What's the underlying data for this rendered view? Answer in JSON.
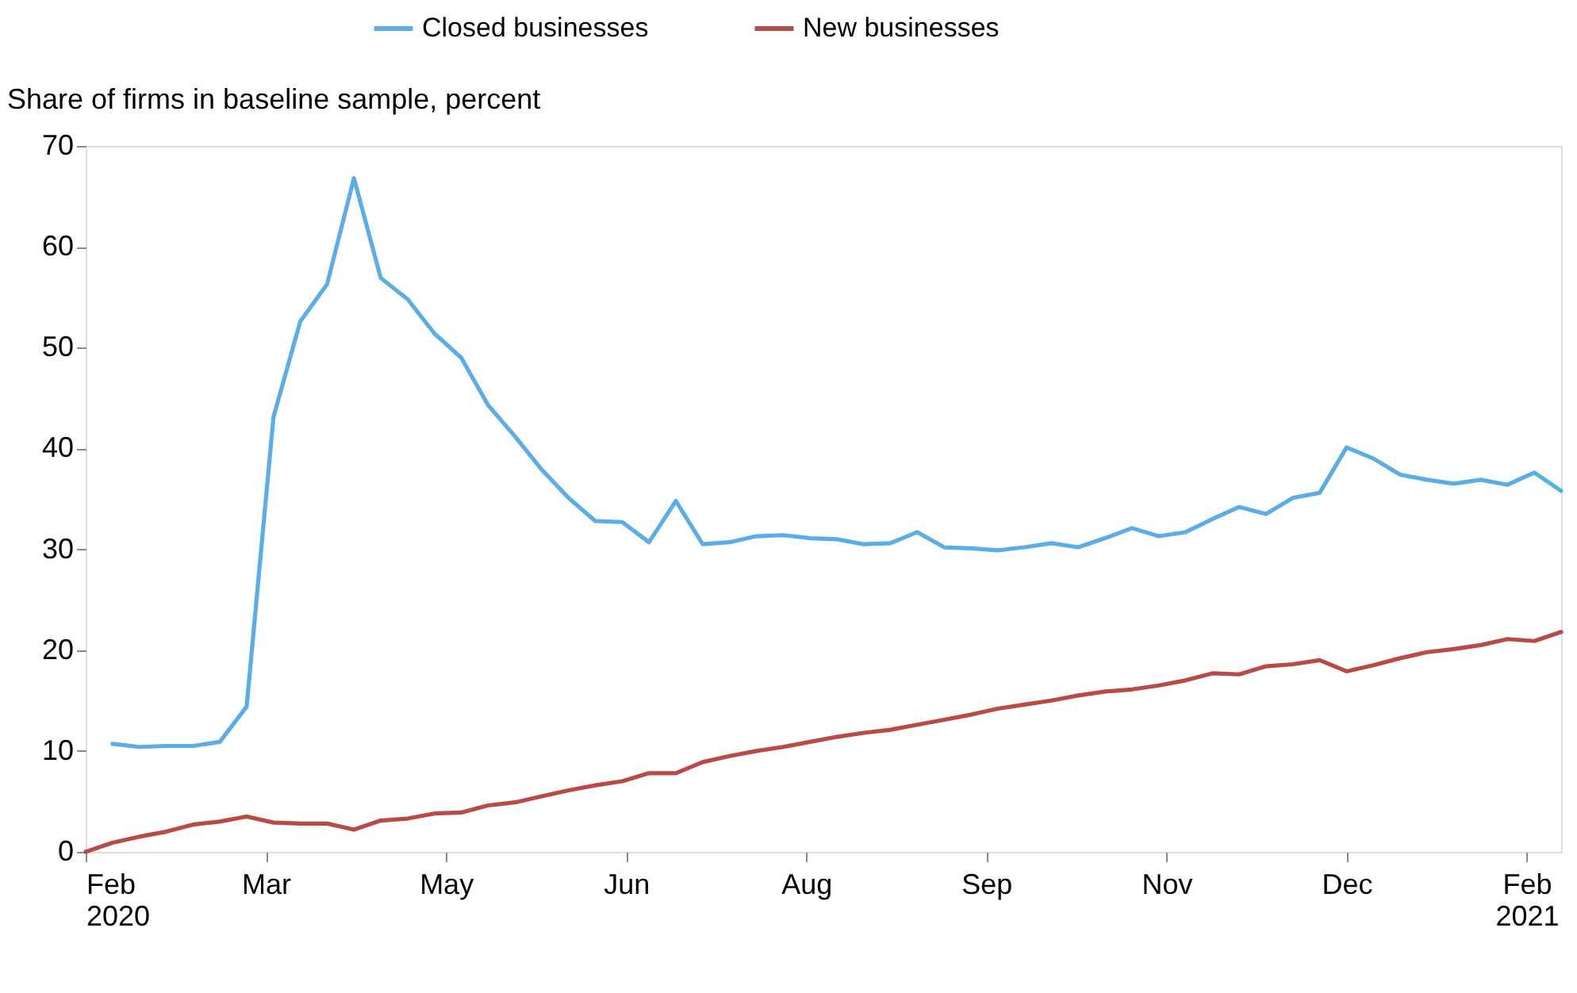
{
  "chart_data": {
    "type": "line",
    "ylabel": "Share of firms in baseline sample, percent",
    "xlim": [
      "2020-02-01",
      "2021-02-20"
    ],
    "ylim": [
      0,
      70
    ],
    "yticks": [
      0,
      10,
      20,
      30,
      40,
      50,
      60,
      70
    ],
    "xticks": [
      {
        "value": "2020-02-01",
        "label": "Feb\n2020"
      },
      {
        "value": "2020-03-19",
        "label": "Mar"
      },
      {
        "value": "2020-05-05",
        "label": "May"
      },
      {
        "value": "2020-06-21",
        "label": "Jun"
      },
      {
        "value": "2020-08-07",
        "label": "Aug"
      },
      {
        "value": "2020-09-23",
        "label": "Sep"
      },
      {
        "value": "2020-11-09",
        "label": "Nov"
      },
      {
        "value": "2020-12-26",
        "label": "Dec"
      },
      {
        "value": "2021-02-11",
        "label": "Feb\n2021"
      }
    ],
    "grid": false,
    "legend": "top",
    "marker": "none",
    "line_style": "solid",
    "series": [
      {
        "name": "Closed businesses",
        "color": "#5aade6",
        "x": [
          "2020-02-08",
          "2020-02-15",
          "2020-02-22",
          "2020-02-29",
          "2020-03-07",
          "2020-03-14",
          "2020-03-21",
          "2020-03-28",
          "2020-04-04",
          "2020-04-11",
          "2020-04-18",
          "2020-04-25",
          "2020-05-02",
          "2020-05-09",
          "2020-05-16",
          "2020-05-23",
          "2020-05-30",
          "2020-06-06",
          "2020-06-13",
          "2020-06-20",
          "2020-06-27",
          "2020-07-04",
          "2020-07-11",
          "2020-07-18",
          "2020-07-25",
          "2020-08-01",
          "2020-08-08",
          "2020-08-15",
          "2020-08-22",
          "2020-08-29",
          "2020-09-05",
          "2020-09-12",
          "2020-09-19",
          "2020-09-26",
          "2020-10-03",
          "2020-10-10",
          "2020-10-17",
          "2020-10-24",
          "2020-10-31",
          "2020-11-07",
          "2020-11-14",
          "2020-11-21",
          "2020-11-28",
          "2020-12-05",
          "2020-12-12",
          "2020-12-19",
          "2020-12-26",
          "2021-01-02",
          "2021-01-09",
          "2021-01-16",
          "2021-01-23",
          "2021-01-30",
          "2021-02-06",
          "2021-02-13",
          "2021-02-20"
        ],
        "values": [
          10.7,
          10.4,
          10.5,
          10.5,
          10.9,
          14.4,
          43.1,
          52.6,
          56.3,
          66.8,
          56.9,
          54.8,
          51.4,
          49.0,
          44.3,
          41.2,
          37.9,
          35.1,
          32.8,
          32.7,
          30.7,
          34.8,
          30.5,
          30.7,
          31.3,
          31.4,
          31.1,
          31.0,
          30.5,
          30.6,
          31.7,
          30.2,
          30.1,
          29.9,
          30.2,
          30.6,
          30.2,
          31.1,
          32.1,
          31.3,
          31.7,
          33.0,
          34.2,
          33.5,
          35.1,
          35.6,
          40.1,
          39.0,
          37.4,
          36.9,
          36.5,
          36.9,
          36.4,
          37.6,
          35.8
        ]
      },
      {
        "name": "New businesses",
        "color": "#b94a48",
        "x": [
          "2020-02-01",
          "2020-02-08",
          "2020-02-15",
          "2020-02-22",
          "2020-02-29",
          "2020-03-07",
          "2020-03-14",
          "2020-03-21",
          "2020-03-28",
          "2020-04-04",
          "2020-04-11",
          "2020-04-18",
          "2020-04-25",
          "2020-05-02",
          "2020-05-09",
          "2020-05-16",
          "2020-05-23",
          "2020-05-30",
          "2020-06-06",
          "2020-06-13",
          "2020-06-20",
          "2020-06-27",
          "2020-07-04",
          "2020-07-11",
          "2020-07-18",
          "2020-07-25",
          "2020-08-01",
          "2020-08-08",
          "2020-08-15",
          "2020-08-22",
          "2020-08-29",
          "2020-09-05",
          "2020-09-12",
          "2020-09-19",
          "2020-09-26",
          "2020-10-03",
          "2020-10-10",
          "2020-10-17",
          "2020-10-24",
          "2020-10-31",
          "2020-11-07",
          "2020-11-14",
          "2020-11-21",
          "2020-11-28",
          "2020-12-05",
          "2020-12-12",
          "2020-12-19",
          "2020-12-26",
          "2021-01-02",
          "2021-01-09",
          "2021-01-16",
          "2021-01-23",
          "2021-01-30",
          "2021-02-06",
          "2021-02-13",
          "2021-02-20"
        ],
        "values": [
          0,
          0.9,
          1.5,
          2.0,
          2.7,
          3.0,
          3.5,
          2.9,
          2.8,
          2.8,
          2.2,
          3.1,
          3.3,
          3.8,
          3.9,
          4.6,
          4.9,
          5.5,
          6.1,
          6.6,
          7.0,
          7.8,
          7.8,
          8.9,
          9.5,
          10.0,
          10.4,
          10.9,
          11.4,
          11.8,
          12.1,
          12.6,
          13.1,
          13.6,
          14.2,
          14.6,
          15.0,
          15.5,
          15.9,
          16.1,
          16.5,
          17.0,
          17.7,
          17.6,
          18.4,
          18.6,
          19.0,
          17.9,
          18.5,
          19.2,
          19.8,
          20.1,
          20.5,
          21.1,
          20.9,
          21.8
        ]
      }
    ]
  }
}
